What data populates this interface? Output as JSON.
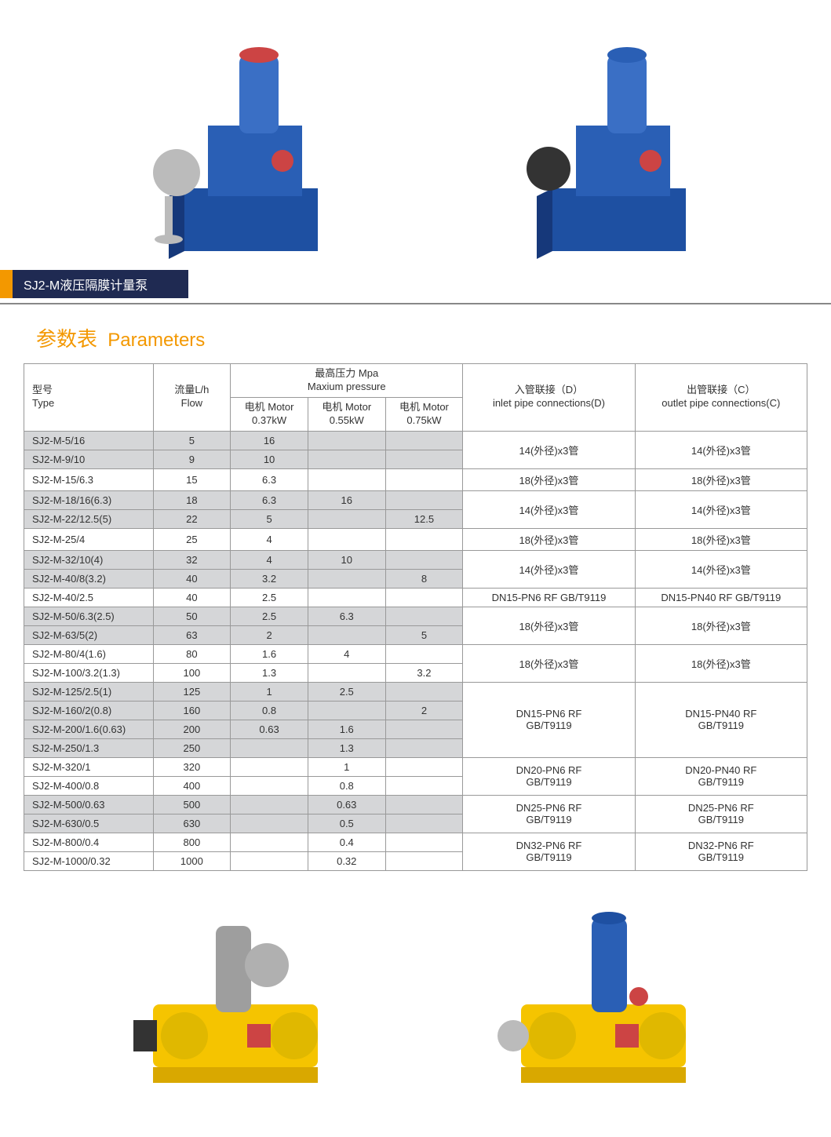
{
  "colors": {
    "orange": "#f39800",
    "navy": "#1f2a52",
    "row_alt": "#d5d6d8",
    "border": "#999999",
    "pump_blue": "#1e50a2",
    "pump_yellow": "#f5c400",
    "pump_grey": "#9e9e9e"
  },
  "titlebar": {
    "text": "SJ2-M液压隔膜计量泵"
  },
  "heading": {
    "cn": "参数表",
    "en": "Parameters"
  },
  "table": {
    "headers": {
      "type_cn": "型号",
      "type_en": "Type",
      "flow_cn": "流量L/h",
      "flow_en": "Flow",
      "pressure_cn": "最高压力  Mpa",
      "pressure_en": "Maxium pressure",
      "motor_label": "电机  Motor",
      "motor1": "0.37kW",
      "motor2": "0.55kW",
      "motor3": "0.75kW",
      "inlet_cn": "入管联接（D）",
      "inlet_en": "inlet pipe connections(D)",
      "outlet_cn": "出管联接（C）",
      "outlet_en": "outlet pipe connections(C)"
    },
    "rows": [
      {
        "type": "SJ2-M-5/16",
        "flow": "5",
        "m1": "16",
        "m2": "",
        "m3": "",
        "alt": true,
        "inlet": "14(外径)x3管",
        "outlet": "14(外径)x3管",
        "span": 2
      },
      {
        "type": "SJ2-M-9/10",
        "flow": "9",
        "m1": "10",
        "m2": "",
        "m3": "",
        "alt": true
      },
      {
        "type": "SJ2-M-15/6.3",
        "flow": "15",
        "m1": "6.3",
        "m2": "",
        "m3": "",
        "alt": false,
        "inlet": "18(外径)x3管",
        "outlet": "18(外径)x3管",
        "span": 1
      },
      {
        "type": "SJ2-M-18/16(6.3)",
        "flow": "18",
        "m1": "6.3",
        "m2": "16",
        "m3": "",
        "alt": true,
        "inlet": "14(外径)x3管",
        "outlet": "14(外径)x3管",
        "span": 2
      },
      {
        "type": "SJ2-M-22/12.5(5)",
        "flow": "22",
        "m1": "5",
        "m2": "",
        "m3": "12.5",
        "alt": true
      },
      {
        "type": "SJ2-M-25/4",
        "flow": "25",
        "m1": "4",
        "m2": "",
        "m3": "",
        "alt": false,
        "inlet": "18(外径)x3管",
        "outlet": "18(外径)x3管",
        "span": 1
      },
      {
        "type": "SJ2-M-32/10(4)",
        "flow": "32",
        "m1": "4",
        "m2": "10",
        "m3": "",
        "alt": true,
        "inlet": "14(外径)x3管",
        "outlet": "14(外径)x3管",
        "span": 2
      },
      {
        "type": "SJ2-M-40/8(3.2)",
        "flow": "40",
        "m1": "3.2",
        "m2": "",
        "m3": "8",
        "alt": true
      },
      {
        "type": "SJ2-M-40/2.5",
        "flow": "40",
        "m1": "2.5",
        "m2": "",
        "m3": "",
        "alt": false,
        "inlet": "DN15-PN6 RF GB/T9119",
        "outlet": "DN15-PN40 RF GB/T9119",
        "span": 1
      },
      {
        "type": "SJ2-M-50/6.3(2.5)",
        "flow": "50",
        "m1": "2.5",
        "m2": "6.3",
        "m3": "",
        "alt": true,
        "inlet": "18(外径)x3管",
        "outlet": "18(外径)x3管",
        "span": 2
      },
      {
        "type": "SJ2-M-63/5(2)",
        "flow": "63",
        "m1": "2",
        "m2": "",
        "m3": "5",
        "alt": true
      },
      {
        "type": "SJ2-M-80/4(1.6)",
        "flow": "80",
        "m1": "1.6",
        "m2": "4",
        "m3": "",
        "alt": false,
        "inlet": "18(外径)x3管",
        "outlet": "18(外径)x3管",
        "span": 2
      },
      {
        "type": "SJ2-M-100/3.2(1.3)",
        "flow": "100",
        "m1": "1.3",
        "m2": "",
        "m3": "3.2",
        "alt": false
      },
      {
        "type": "SJ2-M-125/2.5(1)",
        "flow": "125",
        "m1": "1",
        "m2": "2.5",
        "m3": "",
        "alt": true,
        "inlet": "DN15-PN6 RF\nGB/T9119",
        "outlet": "DN15-PN40 RF\nGB/T9119",
        "span": 4
      },
      {
        "type": "SJ2-M-160/2(0.8)",
        "flow": "160",
        "m1": "0.8",
        "m2": "",
        "m3": "2",
        "alt": true
      },
      {
        "type": "SJ2-M-200/1.6(0.63)",
        "flow": "200",
        "m1": "0.63",
        "m2": "1.6",
        "m3": "",
        "alt": true
      },
      {
        "type": "SJ2-M-250/1.3",
        "flow": "250",
        "m1": "",
        "m2": "1.3",
        "m3": "",
        "alt": true
      },
      {
        "type": "SJ2-M-320/1",
        "flow": "320",
        "m1": "",
        "m2": "1",
        "m3": "",
        "alt": false,
        "inlet": "DN20-PN6 RF\nGB/T9119",
        "outlet": "DN20-PN40 RF\nGB/T9119",
        "span": 2
      },
      {
        "type": "SJ2-M-400/0.8",
        "flow": "400",
        "m1": "",
        "m2": "0.8",
        "m3": "",
        "alt": false
      },
      {
        "type": "SJ2-M-500/0.63",
        "flow": "500",
        "m1": "",
        "m2": "0.63",
        "m3": "",
        "alt": true,
        "inlet": "DN25-PN6 RF\nGB/T9119",
        "outlet": "DN25-PN6 RF\nGB/T9119",
        "span": 2
      },
      {
        "type": "SJ2-M-630/0.5",
        "flow": "630",
        "m1": "",
        "m2": "0.5",
        "m3": "",
        "alt": true
      },
      {
        "type": "SJ2-M-800/0.4",
        "flow": "800",
        "m1": "",
        "m2": "0.4",
        "m3": "",
        "alt": false,
        "inlet": "DN32-PN6 RF\nGB/T9119",
        "outlet": "DN32-PN6 RF\nGB/T9119",
        "span": 2
      },
      {
        "type": "SJ2-M-1000/0.32",
        "flow": "1000",
        "m1": "",
        "m2": "0.32",
        "m3": "",
        "alt": false
      }
    ]
  }
}
